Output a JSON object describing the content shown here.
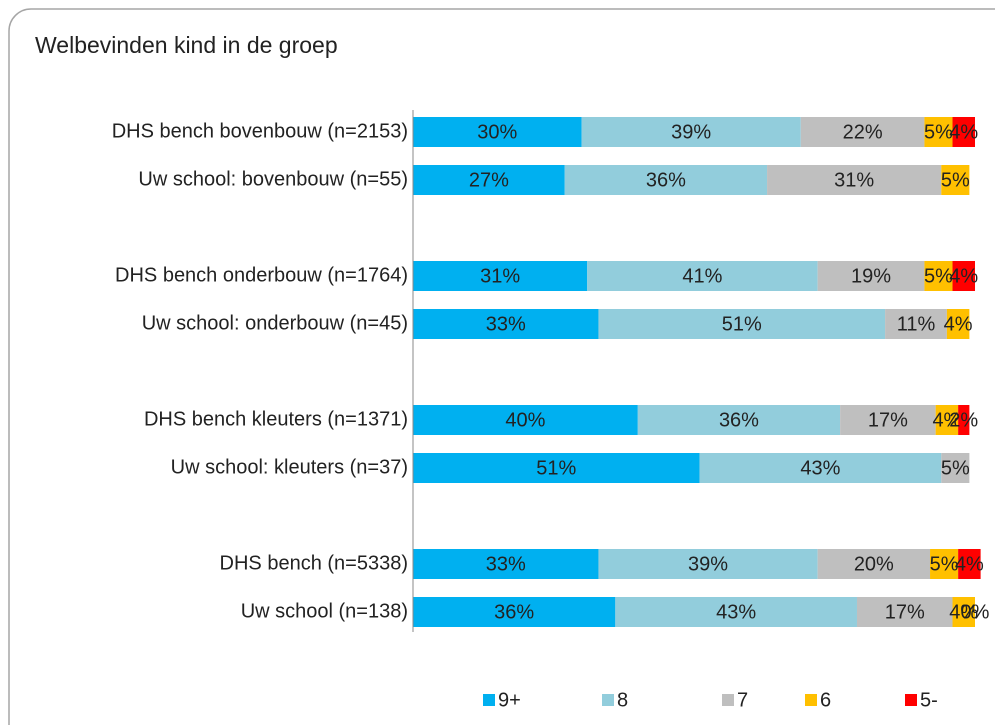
{
  "chart_data": {
    "type": "stacked_barh",
    "title": "Welbevinden kind in de groep",
    "categories": [
      "DHS bench bovenbouw (n=2153)",
      "Uw school: bovenbouw (n=55)",
      null,
      "DHS bench onderbouw (n=1764)",
      "Uw school: onderbouw (n=45)",
      null,
      "DHS bench kleuters (n=1371)",
      "Uw school: kleuters (n=37)",
      null,
      "DHS bench (n=5338)",
      "Uw school (n=138)"
    ],
    "xlim": [
      0,
      100
    ],
    "legend": "bottom",
    "series": [
      {
        "name": "9+",
        "color": "#00b0f0",
        "values": [
          30,
          27,
          null,
          31,
          33,
          null,
          40,
          51,
          null,
          33,
          36
        ],
        "value_labels": [
          "30%",
          "27%",
          null,
          "31%",
          "33%",
          null,
          "40%",
          "51%",
          null,
          "33%",
          "36%"
        ]
      },
      {
        "name": "8",
        "color": "#92cddc",
        "values": [
          39,
          36,
          null,
          41,
          51,
          null,
          36,
          43,
          null,
          39,
          43
        ],
        "value_labels": [
          "39%",
          "36%",
          null,
          "41%",
          "51%",
          null,
          "36%",
          "43%",
          null,
          "39%",
          "43%"
        ]
      },
      {
        "name": "7",
        "color": "#bfbfbf",
        "values": [
          22,
          31,
          null,
          19,
          11,
          null,
          17,
          5,
          null,
          20,
          17
        ],
        "value_labels": [
          "22%",
          "31%",
          null,
          "19%",
          "11%",
          null,
          "17%",
          "5%",
          null,
          "20%",
          "17%"
        ]
      },
      {
        "name": "6",
        "color": "#ffc000",
        "values": [
          5,
          5,
          null,
          5,
          4,
          null,
          4,
          0,
          null,
          5,
          4
        ],
        "value_labels": [
          "5%",
          "5%",
          null,
          "5%",
          "4%",
          null,
          "4%",
          null,
          null,
          "5%",
          "4%"
        ]
      },
      {
        "name": "5-",
        "color": "#ff0000",
        "values": [
          4,
          0,
          null,
          4,
          0,
          null,
          2,
          0,
          null,
          4,
          0
        ],
        "value_labels": [
          "4%",
          null,
          null,
          "4%",
          null,
          null,
          "2%",
          null,
          null,
          "4%",
          "0%"
        ]
      }
    ]
  }
}
